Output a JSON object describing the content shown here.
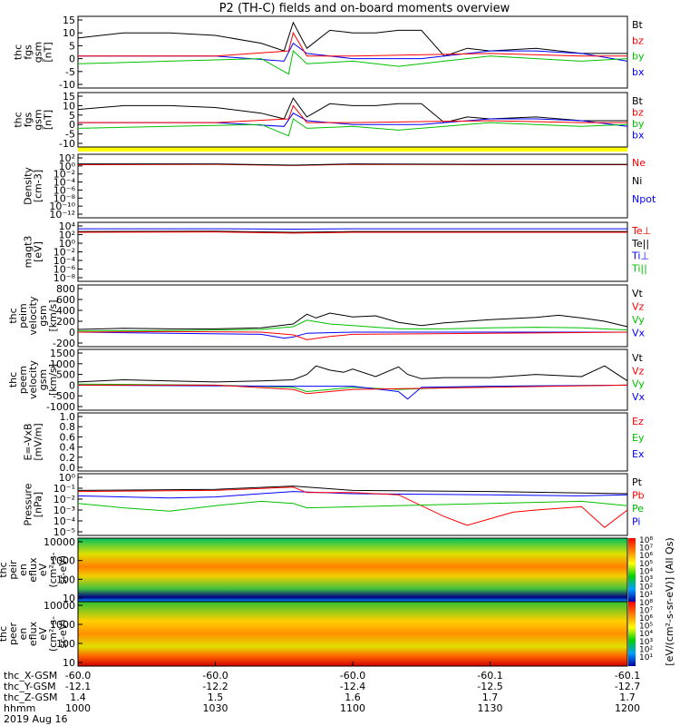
{
  "title": "P2 (TH-C) fields and on-board moments overview",
  "chart_data": [
    {
      "type": "line",
      "ylabel": [
        "thc",
        "fgs",
        "gsm",
        "[nT]"
      ],
      "yticks": [
        "15",
        "10",
        "5",
        "0",
        "-5",
        "-10"
      ],
      "ylim": [
        -10,
        15
      ],
      "legend": [
        {
          "name": "Bt",
          "color": "#000000"
        },
        {
          "name": "bz",
          "color": "#ff0000"
        },
        {
          "name": "by",
          "color": "#00c000"
        },
        {
          "name": "bx",
          "color": "#0000ff"
        }
      ],
      "series": [
        {
          "name": "Bt",
          "color": "#000000",
          "x": [
            1000,
            1010,
            1020,
            1030,
            1040,
            1045,
            1047,
            1050,
            1055,
            1100,
            1105,
            1110,
            1115,
            1120,
            1125,
            1130,
            1140,
            1150,
            1200
          ],
          "y": [
            8,
            10,
            10,
            9,
            6,
            3,
            14,
            4,
            11,
            10,
            10,
            11,
            11,
            1,
            4,
            3,
            4,
            2,
            2
          ]
        },
        {
          "name": "bx",
          "color": "#0000ff",
          "x": [
            1000,
            1030,
            1045,
            1047,
            1050,
            1100,
            1115,
            1120,
            1130,
            1140,
            1150,
            1200
          ],
          "y": [
            1,
            1,
            -1,
            6,
            2,
            0,
            0,
            1,
            3,
            3,
            2,
            -1
          ]
        },
        {
          "name": "by",
          "color": "#00c000",
          "x": [
            1000,
            1020,
            1040,
            1046,
            1047,
            1050,
            1100,
            1110,
            1120,
            1130,
            1150,
            1200
          ],
          "y": [
            -2,
            -1,
            0,
            -6,
            3,
            -2,
            -1,
            -3,
            -1,
            1,
            -1,
            0
          ]
        },
        {
          "name": "bz",
          "color": "#ff0000",
          "x": [
            1000,
            1030,
            1046,
            1047,
            1050,
            1100,
            1130,
            1150,
            1200
          ],
          "y": [
            1,
            1,
            3,
            10,
            1,
            1,
            2,
            1,
            1
          ]
        }
      ]
    },
    {
      "type": "line",
      "ylabel": [
        "thc",
        "fgs",
        "gsm",
        "[nT]"
      ],
      "yticks": [
        "15",
        "10",
        "5",
        "0",
        "-5",
        "-10"
      ],
      "ylim": [
        -10,
        15
      ],
      "legend": [
        {
          "name": "Bt",
          "color": "#000000"
        },
        {
          "name": "bz",
          "color": "#ff0000"
        },
        {
          "name": "by",
          "color": "#00c000"
        },
        {
          "name": "bx",
          "color": "#0000ff"
        }
      ],
      "series": [
        {
          "name": "Bt",
          "color": "#000000",
          "x": [
            1000,
            1010,
            1020,
            1030,
            1040,
            1045,
            1047,
            1050,
            1055,
            1100,
            1105,
            1110,
            1115,
            1120,
            1125,
            1130,
            1140,
            1150,
            1200
          ],
          "y": [
            8,
            10,
            10,
            9,
            6,
            3,
            14,
            4,
            11,
            10,
            10,
            11,
            11,
            1,
            4,
            3,
            4,
            2,
            2
          ]
        },
        {
          "name": "bx",
          "color": "#0000ff",
          "x": [
            1000,
            1030,
            1045,
            1047,
            1050,
            1100,
            1115,
            1120,
            1130,
            1140,
            1150,
            1200
          ],
          "y": [
            1,
            1,
            -1,
            6,
            2,
            0,
            0,
            1,
            3,
            3,
            2,
            -1
          ]
        },
        {
          "name": "by",
          "color": "#00c000",
          "x": [
            1000,
            1020,
            1040,
            1046,
            1047,
            1050,
            1100,
            1110,
            1120,
            1130,
            1150,
            1200
          ],
          "y": [
            -2,
            -1,
            0,
            -6,
            3,
            -2,
            -1,
            -3,
            -1,
            1,
            -1,
            0
          ]
        },
        {
          "name": "bz",
          "color": "#ff0000",
          "x": [
            1000,
            1030,
            1046,
            1047,
            1050,
            1100,
            1130,
            1150,
            1200
          ],
          "y": [
            1,
            1,
            3,
            10,
            1,
            1,
            2,
            1,
            1
          ]
        }
      ]
    },
    {
      "type": "line",
      "ylabel": [
        "Density",
        "[cm-3]"
      ],
      "yticks": [
        "10²",
        "10⁰",
        "10⁻²",
        "10⁻⁴",
        "10⁻⁶",
        "10⁻⁸",
        "10⁻¹⁰",
        "10⁻¹²"
      ],
      "yscale": "log",
      "ylim": [
        -12,
        2
      ],
      "legend": [
        {
          "name": "Ne",
          "color": "#ff0000"
        },
        {
          "name": "Ni",
          "color": "#000000"
        },
        {
          "name": "Npot",
          "color": "#0000ff"
        }
      ],
      "series": [
        {
          "name": "Ne",
          "color": "#ff0000",
          "x": [
            1000,
            1030,
            1047,
            1100,
            1130,
            1200
          ],
          "y": [
            0.3,
            0.4,
            0.1,
            0.4,
            0.3,
            0.3
          ]
        },
        {
          "name": "Ni",
          "color": "#000000",
          "x": [
            1000,
            1030,
            1047,
            1100,
            1130,
            1200
          ],
          "y": [
            0.5,
            0.5,
            0.2,
            0.5,
            0.4,
            0.4
          ]
        }
      ]
    },
    {
      "type": "line",
      "ylabel": [
        "magt3",
        "[eV]"
      ],
      "yticks": [
        "10⁴",
        "10²",
        "10⁰",
        "10⁻²",
        "10⁻⁴",
        "10⁻⁶",
        "10⁻⁸"
      ],
      "yscale": "log",
      "ylim": [
        -9,
        4
      ],
      "legend": [
        {
          "name": "Te⊥",
          "color": "#ff0000"
        },
        {
          "name": "Te||",
          "color": "#000000"
        },
        {
          "name": "Ti⊥",
          "color": "#0000ff"
        },
        {
          "name": "Ti||",
          "color": "#00c000"
        }
      ],
      "series": [
        {
          "name": "Ti⊥",
          "color": "#0000ff",
          "x": [
            1000,
            1030,
            1047,
            1100,
            1130,
            1200
          ],
          "y": [
            3.3,
            3.3,
            3.2,
            3.3,
            3.3,
            3.3
          ]
        },
        {
          "name": "Te||",
          "color": "#000000",
          "x": [
            1000,
            1030,
            1047,
            1100,
            1130,
            1200
          ],
          "y": [
            2.6,
            2.7,
            2.4,
            2.6,
            2.6,
            2.6
          ]
        },
        {
          "name": "Te⊥",
          "color": "#ff0000",
          "x": [
            1000,
            1030,
            1047,
            1100,
            1130,
            1200
          ],
          "y": [
            2.4,
            2.5,
            2.2,
            2.4,
            2.4,
            2.4
          ]
        }
      ]
    },
    {
      "type": "line",
      "ylabel": [
        "thc",
        "peim",
        "velocity",
        "gsm",
        "[km/s]"
      ],
      "yticks": [
        "800",
        "600",
        "400",
        "200",
        "0",
        "-200"
      ],
      "ylim": [
        -200,
        800
      ],
      "legend": [
        {
          "name": "Vt",
          "color": "#000000"
        },
        {
          "name": "Vz",
          "color": "#ff0000"
        },
        {
          "name": "Vy",
          "color": "#00c000"
        },
        {
          "name": "Vx",
          "color": "#0000ff"
        }
      ],
      "series": [
        {
          "name": "Vt",
          "color": "#000000",
          "x": [
            1000,
            1010,
            1020,
            1030,
            1040,
            1047,
            1050,
            1052,
            1055,
            1100,
            1105,
            1110,
            1115,
            1120,
            1125,
            1130,
            1140,
            1145,
            1150,
            1155,
            1200
          ],
          "y": [
            50,
            70,
            60,
            60,
            80,
            150,
            330,
            260,
            350,
            280,
            300,
            180,
            120,
            170,
            200,
            230,
            270,
            310,
            260,
            200,
            100
          ]
        },
        {
          "name": "Vy",
          "color": "#00c000",
          "x": [
            1000,
            1020,
            1040,
            1047,
            1050,
            1055,
            1100,
            1110,
            1120,
            1130,
            1140,
            1150,
            1200
          ],
          "y": [
            20,
            30,
            50,
            100,
            220,
            150,
            120,
            60,
            60,
            80,
            90,
            80,
            40
          ]
        },
        {
          "name": "Vx",
          "color": "#0000ff",
          "x": [
            1000,
            1020,
            1040,
            1045,
            1047,
            1050,
            1100,
            1130,
            1200
          ],
          "y": [
            0,
            -20,
            -40,
            -110,
            -90,
            -20,
            0,
            0,
            0
          ]
        },
        {
          "name": "Vz",
          "color": "#ff0000",
          "x": [
            1000,
            1020,
            1040,
            1047,
            1050,
            1055,
            1100,
            1130,
            1200
          ],
          "y": [
            0,
            10,
            0,
            -50,
            -140,
            -80,
            -40,
            -20,
            0
          ]
        }
      ]
    },
    {
      "type": "line",
      "ylabel": [
        "thc",
        "peem",
        "velocity",
        "gsm",
        "[km/s]"
      ],
      "yticks": [
        "1500",
        "1000",
        "500",
        "0",
        "-500",
        "-1000"
      ],
      "ylim": [
        -1000,
        1500
      ],
      "legend": [
        {
          "name": "Vt",
          "color": "#000000"
        },
        {
          "name": "Vz",
          "color": "#ff0000"
        },
        {
          "name": "Vy",
          "color": "#00c000"
        },
        {
          "name": "Vx",
          "color": "#0000ff"
        }
      ],
      "series": [
        {
          "name": "Vt",
          "color": "#000000",
          "x": [
            1000,
            1010,
            1020,
            1030,
            1040,
            1047,
            1050,
            1052,
            1055,
            1058,
            1100,
            1105,
            1110,
            1112,
            1115,
            1120,
            1130,
            1140,
            1150,
            1155,
            1200
          ],
          "y": [
            150,
            250,
            200,
            150,
            200,
            250,
            500,
            900,
            700,
            600,
            750,
            400,
            850,
            500,
            300,
            350,
            350,
            500,
            400,
            900,
            200
          ]
        },
        {
          "name": "Vy",
          "color": "#00c000",
          "x": [
            1000,
            1030,
            1047,
            1050,
            1100,
            1110,
            1130,
            1200
          ],
          "y": [
            50,
            0,
            -100,
            -300,
            -100,
            -200,
            -50,
            0
          ]
        },
        {
          "name": "Vx",
          "color": "#0000ff",
          "x": [
            1000,
            1047,
            1100,
            1110,
            1112,
            1115,
            1130,
            1200
          ],
          "y": [
            0,
            -50,
            -50,
            -300,
            -650,
            -100,
            -50,
            0
          ]
        },
        {
          "name": "Vz",
          "color": "#ff0000",
          "x": [
            1000,
            1030,
            1047,
            1050,
            1100,
            1130,
            1200
          ],
          "y": [
            0,
            0,
            -200,
            -400,
            -200,
            -100,
            0
          ]
        }
      ]
    },
    {
      "type": "line",
      "ylabel": [
        "E=-VxB",
        "[mV/m]"
      ],
      "yticks": [
        "1.0",
        "0.8",
        "0.6",
        "0.4",
        "0.2",
        "0.0"
      ],
      "ylim": [
        0,
        1
      ],
      "legend": [
        {
          "name": "Ez",
          "color": "#ff0000"
        },
        {
          "name": "Ey",
          "color": "#00c000"
        },
        {
          "name": "Ex",
          "color": "#0000ff"
        }
      ],
      "series": []
    },
    {
      "type": "line",
      "ylabel": [
        "Pressure",
        "[nPa]"
      ],
      "yticks": [
        "10⁰",
        "10⁻¹",
        "10⁻²",
        "10⁻³",
        "10⁻⁴",
        "10⁻⁵"
      ],
      "yscale": "log",
      "ylim": [
        -5,
        0
      ],
      "legend": [
        {
          "name": "Pt",
          "color": "#000000"
        },
        {
          "name": "Pb",
          "color": "#ff0000"
        },
        {
          "name": "Pe",
          "color": "#00c000"
        },
        {
          "name": "Pi",
          "color": "#0000ff"
        }
      ],
      "series": [
        {
          "name": "Pt",
          "color": "#000000",
          "x": [
            1000,
            1030,
            1047,
            1100,
            1130,
            1200
          ],
          "y": [
            -1.2,
            -1.1,
            -0.8,
            -1.2,
            -1.3,
            -1.5
          ]
        },
        {
          "name": "Pi",
          "color": "#0000ff",
          "x": [
            1000,
            1020,
            1030,
            1040,
            1047,
            1100,
            1130,
            1150,
            1200
          ],
          "y": [
            -1.7,
            -1.9,
            -1.8,
            -1.5,
            -1.3,
            -1.5,
            -1.6,
            -1.7,
            -1.6
          ]
        },
        {
          "name": "Pb",
          "color": "#ff0000",
          "x": [
            1000,
            1030,
            1047,
            1050,
            1100,
            1110,
            1120,
            1125,
            1130,
            1135,
            1140,
            1150,
            1155,
            1200
          ],
          "y": [
            -1.3,
            -1.2,
            -0.9,
            -1.4,
            -1.4,
            -1.6,
            -3.6,
            -4.4,
            -3.8,
            -3.2,
            -3.0,
            -2.7,
            -4.6,
            -3.0
          ]
        },
        {
          "name": "Pe",
          "color": "#00c000",
          "x": [
            1000,
            1010,
            1020,
            1030,
            1040,
            1047,
            1050,
            1100,
            1130,
            1150,
            1200
          ],
          "y": [
            -2.4,
            -2.8,
            -3.1,
            -2.6,
            -2.2,
            -2.4,
            -2.8,
            -2.7,
            -2.4,
            -2.2,
            -2.6
          ]
        }
      ]
    },
    {
      "type": "heatmap",
      "ylabel": [
        "thc",
        "peir",
        "en",
        "eflux",
        "eV",
        "(cm²-s-",
        "sr-eV)"
      ],
      "yticks": [
        "10000",
        "1000",
        "100",
        "10"
      ],
      "yscale": "log"
    },
    {
      "type": "heatmap",
      "ylabel": [
        "thc",
        "peer",
        "en",
        "eflux",
        "eV",
        "(cm²-s-",
        "sr-eV)"
      ],
      "yticks": [
        "10000",
        "1000",
        "100",
        "10"
      ],
      "yscale": "log"
    }
  ],
  "colorbar": {
    "tick_labels": [
      "10⁸",
      "10⁷",
      "10⁶",
      "10⁵",
      "10⁴",
      "10³",
      "10²",
      "10¹",
      "10⁸",
      "10⁷",
      "10⁶",
      "10⁵",
      "10⁴",
      "10³",
      "10²",
      "10¹"
    ],
    "label": "[eV/(cm²-s-sr-eV)] (All Qs)"
  },
  "xaxis": {
    "row_labels": [
      "thc_X-GSM",
      "thc_Y-GSM",
      "thc_Z-GSM",
      "hhmm",
      "2019 Aug 16"
    ],
    "x": [
      1000,
      1030,
      1100,
      1130,
      1200
    ],
    "columns": [
      [
        "-60.0",
        "-12.1",
        "1.4",
        "1000"
      ],
      [
        "-60.0",
        "-12.2",
        "1.5",
        "1030"
      ],
      [
        "-60.0",
        "-12.4",
        "1.6",
        "1100"
      ],
      [
        "-60.1",
        "-12.5",
        "1.7",
        "1130"
      ],
      [
        "-60.1",
        "-12.7",
        "1.7",
        "1200"
      ]
    ]
  }
}
